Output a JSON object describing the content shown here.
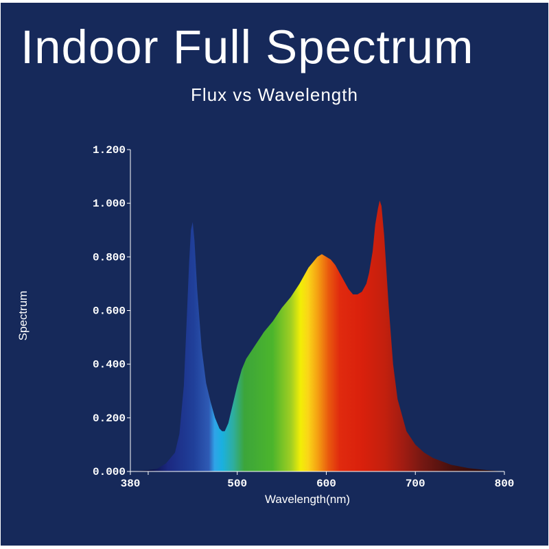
{
  "header": {
    "title": "Indoor Full Spectrum",
    "subtitle": "Flux vs Wavelength"
  },
  "colors": {
    "background": "#16295a",
    "axis": "#ffffff",
    "text": "#ffffff"
  },
  "chart_data": {
    "type": "area",
    "title": "Indoor Full Spectrum",
    "subtitle": "Flux vs Wavelength",
    "xlabel": "Wavelength(nm)",
    "ylabel": "Spectrum",
    "xlim": [
      380,
      800
    ],
    "ylim": [
      0,
      1.2
    ],
    "x_ticks": [
      380,
      500,
      600,
      700,
      800
    ],
    "x_tick_labels": [
      "380",
      "500",
      "600",
      "700",
      "800"
    ],
    "y_ticks": [
      0,
      0.2,
      0.4,
      0.6,
      0.8,
      1.0,
      1.2
    ],
    "y_tick_labels": [
      "0.000",
      "0.200",
      "0.400",
      "0.600",
      "0.800",
      "1.000",
      "1.200"
    ],
    "grid": false,
    "legend": "none",
    "fill": "spectral color gradient",
    "series": [
      {
        "x": [
          380,
          400,
          410,
          420,
          430,
          435,
          440,
          443,
          446,
          448,
          450,
          452,
          455,
          460,
          465,
          470,
          475,
          480,
          483,
          486,
          490,
          495,
          500,
          505,
          510,
          520,
          530,
          540,
          550,
          560,
          570,
          580,
          590,
          595,
          600,
          605,
          610,
          615,
          620,
          625,
          630,
          635,
          640,
          645,
          648,
          652,
          655,
          658,
          660,
          662,
          665,
          670,
          675,
          680,
          690,
          700,
          710,
          720,
          740,
          760,
          780,
          800
        ],
        "y": [
          0,
          0.005,
          0.01,
          0.03,
          0.07,
          0.14,
          0.32,
          0.55,
          0.78,
          0.9,
          0.93,
          0.86,
          0.68,
          0.46,
          0.33,
          0.26,
          0.2,
          0.16,
          0.15,
          0.15,
          0.18,
          0.25,
          0.32,
          0.38,
          0.42,
          0.47,
          0.52,
          0.56,
          0.61,
          0.65,
          0.7,
          0.76,
          0.8,
          0.81,
          0.8,
          0.79,
          0.77,
          0.74,
          0.71,
          0.68,
          0.66,
          0.66,
          0.67,
          0.7,
          0.74,
          0.82,
          0.92,
          0.98,
          1.01,
          0.99,
          0.88,
          0.62,
          0.4,
          0.27,
          0.15,
          0.1,
          0.07,
          0.05,
          0.025,
          0.012,
          0.005,
          0
        ]
      }
    ]
  }
}
